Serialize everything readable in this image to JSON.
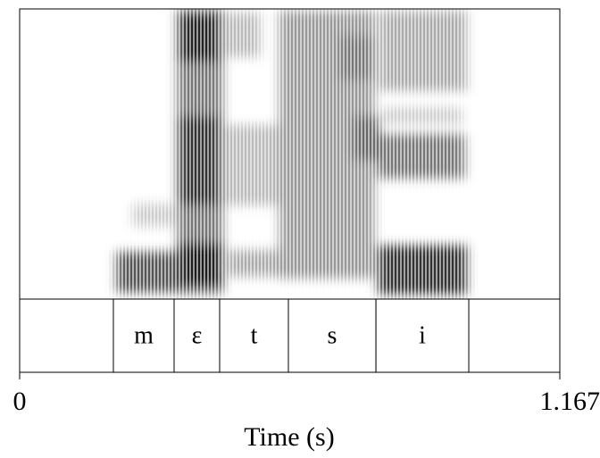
{
  "chart_data": {
    "type": "spectrogram",
    "xlabel": "Time (s)",
    "xlim": [
      0,
      1.167
    ],
    "xticks": [
      0,
      1.167
    ],
    "segments": [
      {
        "label": "m",
        "start": 0.2025,
        "end": 0.3337
      },
      {
        "label": "ɛ",
        "start": 0.3337,
        "end": 0.4321
      },
      {
        "label": "t",
        "start": 0.4321,
        "end": 0.5806
      },
      {
        "label": "s",
        "start": 0.5806,
        "end": 0.7697
      },
      {
        "label": "i",
        "start": 0.7697,
        "end": 0.9703
      }
    ]
  }
}
